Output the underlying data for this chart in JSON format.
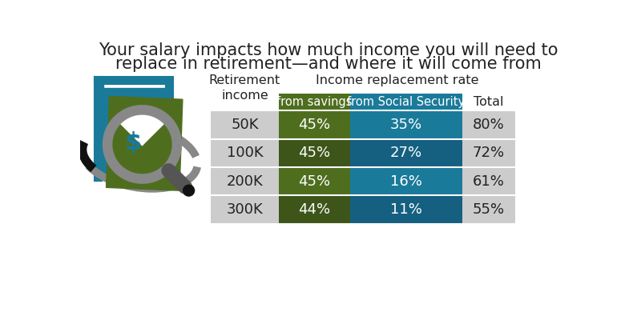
{
  "title_line1": "Your salary impacts how much income you will need to",
  "title_line2": "replace in retirement—and where it will come from",
  "col_sub1": "from savings",
  "col_sub2": "from Social Security",
  "col_sub3": "Total",
  "col_header_ret": "Retirement\nincome",
  "col_header_irr": "Income replacement rate",
  "rows": [
    {
      "income": "50K",
      "savings": "45%",
      "social": "35%",
      "total": "80%"
    },
    {
      "income": "100K",
      "savings": "45%",
      "social": "27%",
      "total": "72%"
    },
    {
      "income": "200K",
      "savings": "45%",
      "social": "16%",
      "total": "61%"
    },
    {
      "income": "300K",
      "savings": "44%",
      "social": "11%",
      "total": "55%"
    }
  ],
  "color_savings": "#4e6e1e",
  "color_savings_dark": "#3d5518",
  "color_social": "#1a7a9a",
  "color_social_dark": "#156080",
  "color_row_gray": "#cccccc",
  "color_text_white": "#ffffff",
  "color_text_dark": "#222222",
  "color_blue_card": "#1a7a9a",
  "color_green_card": "#4e6e1e",
  "background_color": "#ffffff",
  "title_fontsize": 15,
  "header_fontsize": 11.5,
  "subheader_fontsize": 10.5,
  "cell_fontsize": 13
}
